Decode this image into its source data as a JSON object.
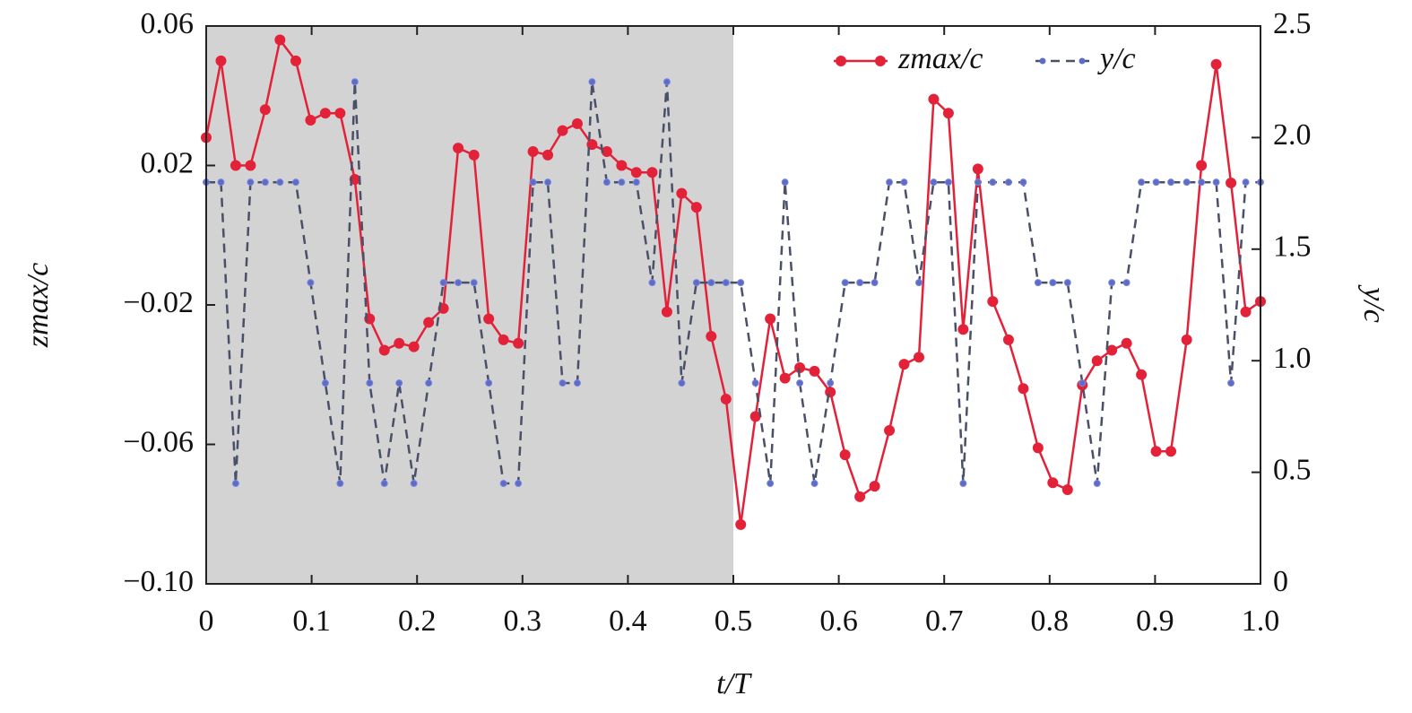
{
  "chart_data": {
    "type": "line",
    "xlabel": "t/T",
    "ylabel": "zmax/c",
    "y2label": "y/c",
    "x": [
      0,
      0.014,
      0.028,
      0.042,
      0.056,
      0.07,
      0.085,
      0.099,
      0.113,
      0.127,
      0.141,
      0.155,
      0.169,
      0.183,
      0.197,
      0.211,
      0.225,
      0.239,
      0.254,
      0.268,
      0.282,
      0.296,
      0.31,
      0.324,
      0.338,
      0.352,
      0.366,
      0.38,
      0.394,
      0.408,
      0.423,
      0.437,
      0.451,
      0.465,
      0.479,
      0.493,
      0.507,
      0.521,
      0.535,
      0.549,
      0.563,
      0.577,
      0.592,
      0.606,
      0.62,
      0.634,
      0.648,
      0.662,
      0.676,
      0.69,
      0.704,
      0.718,
      0.732,
      0.746,
      0.761,
      0.775,
      0.789,
      0.803,
      0.817,
      0.831,
      0.845,
      0.859,
      0.873,
      0.887,
      0.901,
      0.915,
      0.93,
      0.944,
      0.958,
      0.972,
      0.986,
      1.0
    ],
    "series": [
      {
        "name": "zmax/c",
        "color": "#e3223a",
        "dashed": false,
        "axis": "y",
        "values": [
          0.028,
          0.05,
          0.02,
          0.02,
          0.036,
          0.056,
          0.05,
          0.033,
          0.035,
          0.035,
          0.016,
          -0.024,
          -0.033,
          -0.031,
          -0.032,
          -0.025,
          -0.021,
          0.025,
          0.023,
          -0.024,
          -0.03,
          -0.031,
          0.024,
          0.023,
          0.03,
          0.032,
          0.026,
          0.024,
          0.02,
          0.018,
          0.018,
          -0.022,
          0.012,
          0.008,
          -0.029,
          -0.047,
          -0.083,
          -0.052,
          -0.024,
          -0.041,
          -0.038,
          -0.039,
          -0.045,
          -0.063,
          -0.075,
          -0.072,
          -0.056,
          -0.037,
          -0.035,
          0.039,
          0.035,
          -0.027,
          0.019,
          -0.019,
          -0.03,
          -0.044,
          -0.061,
          -0.071,
          -0.073,
          -0.043,
          -0.036,
          -0.033,
          -0.031,
          -0.04,
          -0.062,
          -0.062,
          -0.03,
          0.02,
          0.049,
          0.015,
          -0.022,
          -0.019
        ]
      },
      {
        "name": "y/c",
        "color": "#5e6cc8",
        "dashed": true,
        "axis": "y2",
        "values": [
          1.8,
          1.8,
          0.45,
          1.8,
          1.8,
          1.8,
          1.8,
          1.35,
          0.9,
          0.45,
          2.25,
          0.9,
          0.45,
          0.9,
          0.45,
          0.9,
          1.35,
          1.35,
          1.35,
          0.9,
          0.45,
          0.45,
          1.8,
          1.8,
          0.9,
          0.9,
          2.25,
          1.8,
          1.8,
          1.8,
          1.35,
          2.25,
          0.9,
          1.35,
          1.35,
          1.35,
          1.35,
          0.9,
          0.45,
          1.8,
          0.9,
          0.45,
          0.9,
          1.35,
          1.35,
          1.35,
          1.8,
          1.8,
          1.35,
          1.8,
          1.8,
          0.45,
          1.8,
          1.8,
          1.8,
          1.8,
          1.35,
          1.35,
          1.35,
          0.9,
          0.45,
          1.35,
          1.35,
          1.8,
          1.8,
          1.8,
          1.8,
          1.8,
          1.8,
          0.9,
          1.8,
          1.8
        ]
      }
    ],
    "xlim": [
      0,
      1.0
    ],
    "xticks": [
      0,
      0.1,
      0.2,
      0.3,
      0.4,
      0.5,
      0.6,
      0.7,
      0.8,
      0.9,
      {
        "value": 1.0,
        "label": "1.0"
      }
    ],
    "ylim": [
      -0.1,
      0.06
    ],
    "yticks": [
      {
        "value": -0.1,
        "label": "−0.10"
      },
      {
        "value": -0.06,
        "label": "−0.06"
      },
      {
        "value": -0.02,
        "label": "−0.02"
      },
      0.02,
      0.06
    ],
    "y2lim": [
      0,
      2.5
    ],
    "y2ticks": [
      0,
      0.5,
      {
        "value": 1.0,
        "label": "1.0"
      },
      1.5,
      {
        "value": 2.0,
        "label": "2.0"
      },
      2.5
    ],
    "shaded_xrange": [
      0,
      0.5
    ],
    "shade_color": "#d3d3d3",
    "legend": "upper right",
    "grid": false
  }
}
